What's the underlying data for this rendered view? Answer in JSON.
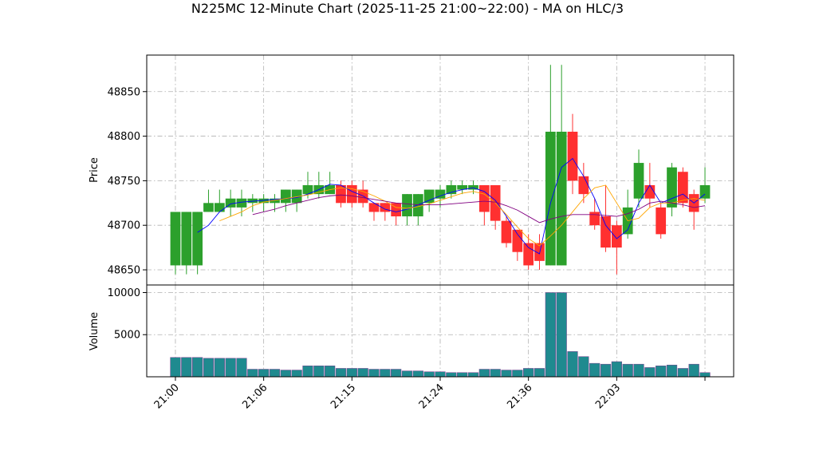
{
  "chart_data": {
    "type": "candlestick",
    "title": "N225MC 12-Minute Chart (2025-11-25 21:00~22:00) - MA on HLC/3",
    "ylabel": "Price",
    "volume_label": "Volume",
    "up_color": "#2ca02c",
    "down_color": "#ff3030",
    "volume_color": "#1f8a8f",
    "grid": true,
    "xlim": [
      -2.6,
      50.6
    ],
    "xticks": [
      {
        "value": 0,
        "label": "21:00"
      },
      {
        "value": 8,
        "label": "21:06"
      },
      {
        "value": 16,
        "label": "21:15"
      },
      {
        "value": 24,
        "label": "21:24"
      },
      {
        "value": 32,
        "label": "21:36"
      },
      {
        "value": 40,
        "label": "22:03"
      },
      {
        "value": 48,
        "label": null
      }
    ],
    "ylim": [
      48633,
      48891
    ],
    "yticks": [
      48650,
      48700,
      48750,
      48800,
      48850
    ],
    "volume_ylim": [
      0,
      10900
    ],
    "volume_yticks": [
      5000,
      10000
    ],
    "open": [
      48655,
      48655,
      48655,
      48715,
      48715,
      48720,
      48720,
      48725,
      48725,
      48725,
      48725,
      48725,
      48735,
      48735,
      48735,
      48745,
      48745,
      48740,
      48725,
      48725,
      48725,
      48710,
      48710,
      48725,
      48730,
      48735,
      48740,
      48740,
      48745,
      48745,
      48705,
      48695,
      48680,
      48680,
      48655,
      48655,
      48805,
      48755,
      48715,
      48710,
      48700,
      48690,
      48730,
      48745,
      48720,
      48720,
      48760,
      48735,
      48730
    ],
    "high": [
      48715,
      48715,
      48715,
      48740,
      48740,
      48740,
      48740,
      48735,
      48735,
      48735,
      48740,
      48740,
      48760,
      48760,
      48760,
      48750,
      48750,
      48750,
      48725,
      48725,
      48725,
      48735,
      48735,
      48740,
      48745,
      48750,
      48750,
      48750,
      48745,
      48745,
      48710,
      48695,
      48690,
      48690,
      48880,
      48880,
      48825,
      48770,
      48730,
      48745,
      48705,
      48740,
      48785,
      48770,
      48725,
      48770,
      48765,
      48740,
      48765
    ],
    "low": [
      48645,
      48645,
      48645,
      48715,
      48715,
      48710,
      48710,
      48715,
      48715,
      48715,
      48715,
      48715,
      48730,
      48730,
      48735,
      48720,
      48720,
      48720,
      48705,
      48705,
      48700,
      48700,
      48700,
      48715,
      48720,
      48730,
      48735,
      48735,
      48700,
      48695,
      48675,
      48660,
      48650,
      48650,
      48655,
      48655,
      48735,
      48725,
      48695,
      48670,
      48645,
      48685,
      48720,
      48720,
      48685,
      48710,
      48720,
      48695,
      48725
    ],
    "close": [
      48715,
      48715,
      48715,
      48725,
      48725,
      48730,
      48730,
      48730,
      48730,
      48730,
      48740,
      48740,
      48745,
      48745,
      48745,
      48725,
      48725,
      48725,
      48715,
      48715,
      48710,
      48735,
      48735,
      48740,
      48740,
      48745,
      48745,
      48745,
      48715,
      48705,
      48680,
      48670,
      48655,
      48660,
      48805,
      48805,
      48750,
      48735,
      48700,
      48675,
      48675,
      48720,
      48770,
      48730,
      48690,
      48765,
      48725,
      48715,
      48745
    ],
    "volume": [
      2300,
      2300,
      2300,
      2200,
      2200,
      2200,
      2200,
      900,
      900,
      900,
      800,
      800,
      1300,
      1300,
      1300,
      1000,
      1000,
      1000,
      900,
      900,
      900,
      700,
      700,
      600,
      600,
      500,
      500,
      500,
      900,
      900,
      800,
      800,
      1000,
      1000,
      10000,
      10000,
      3000,
      2400,
      1600,
      1500,
      1800,
      1500,
      1500,
      1100,
      1300,
      1400,
      1000,
      1500,
      500
    ],
    "series": [
      {
        "color": "#0000ff",
        "values": [
          null,
          null,
          48692,
          48700,
          48715,
          48724,
          48726,
          48727,
          48728,
          48729,
          48730,
          48731,
          48735,
          48740,
          48746,
          48745,
          48738,
          48733,
          48725,
          48718,
          48715,
          48718,
          48723,
          48728,
          48733,
          48737,
          48740,
          48742,
          48738,
          48728,
          48710,
          48690,
          48675,
          48668,
          48725,
          48765,
          48775,
          48755,
          48730,
          48700,
          48685,
          48695,
          48725,
          48745,
          48725,
          48730,
          48735,
          48725,
          48735
        ]
      },
      {
        "color": "#ffa500",
        "values": [
          null,
          null,
          null,
          null,
          48705,
          48710,
          48715,
          48722,
          48726,
          48728,
          48730,
          48732,
          48734,
          48737,
          48740,
          48742,
          48741,
          48738,
          48733,
          48727,
          48720,
          48719,
          48721,
          48724,
          48728,
          48732,
          48736,
          48738,
          48735,
          48725,
          48712,
          48698,
          48685,
          48677,
          48688,
          48700,
          48715,
          48730,
          48742,
          48745,
          48725,
          48705,
          48708,
          48720,
          48725,
          48725,
          48728,
          48730,
          48728
        ]
      },
      {
        "color": "#800080",
        "values": [
          null,
          null,
          null,
          null,
          null,
          null,
          null,
          48712,
          48715,
          48718,
          48722,
          48725,
          48728,
          48731,
          48733,
          48734,
          48733,
          48731,
          48729,
          48727,
          48725,
          48724,
          48723,
          48723,
          48723,
          48724,
          48725,
          48726,
          48727,
          48726,
          48722,
          48717,
          48710,
          48703,
          48707,
          48710,
          48712,
          48712,
          48712,
          48711,
          48710,
          48713,
          48718,
          48725,
          48727,
          48725,
          48723,
          48720,
          48722
        ]
      }
    ]
  }
}
